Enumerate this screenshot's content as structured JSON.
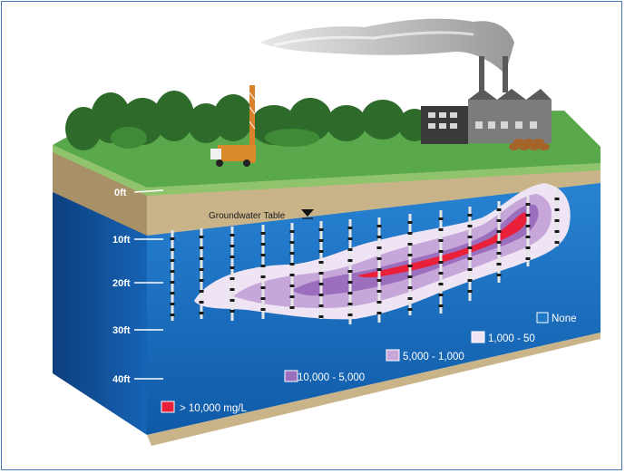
{
  "diagram": {
    "groundwater_label": "Groundwater Table",
    "depth_labels": [
      "0ft",
      "10ft",
      "20ft",
      "30ft",
      "40ft"
    ],
    "legend": [
      {
        "label": "> 10,000 mg/L",
        "color": "#e8203a"
      },
      {
        "label": "10,000 - 5,000",
        "color": "#9c6fbe"
      },
      {
        "label": "5,000 - 1,000",
        "color": "#c7a7d9"
      },
      {
        "label": "1,000 - 50",
        "color": "#efe4f3"
      },
      {
        "label": "None",
        "color": "#1e78c8"
      }
    ],
    "colors": {
      "water": "#1e78c8",
      "water_dark": "#0e4f99",
      "soil": "#c9b48a",
      "soil_dark": "#9c845b",
      "grass": "#58a84a",
      "border": "#4a78b8"
    }
  }
}
